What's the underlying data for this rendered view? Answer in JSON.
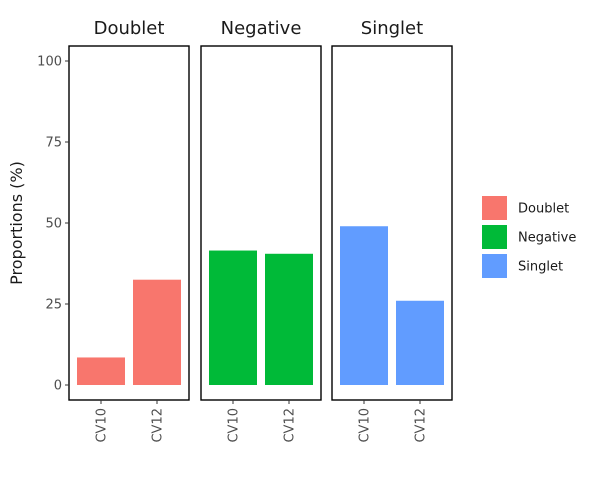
{
  "chart_data": {
    "type": "bar",
    "ylabel": "Proportions (%)",
    "ylim": [
      0,
      100
    ],
    "y_ticks": [
      0,
      25,
      50,
      75,
      100
    ],
    "categories": [
      "CV10",
      "CV12"
    ],
    "grid": false,
    "legend_position": "right",
    "facets": [
      {
        "title": "Doublet",
        "color": "#F8766D",
        "values": [
          8.5,
          32.5
        ]
      },
      {
        "title": "Negative",
        "color": "#00BA38",
        "values": [
          41.5,
          40.5
        ]
      },
      {
        "title": "Singlet",
        "color": "#619CFF",
        "values": [
          49,
          26
        ]
      }
    ],
    "legend": [
      {
        "label": "Doublet",
        "color": "#F8766D"
      },
      {
        "label": "Negative",
        "color": "#00BA38"
      },
      {
        "label": "Singlet",
        "color": "#619CFF"
      }
    ]
  }
}
